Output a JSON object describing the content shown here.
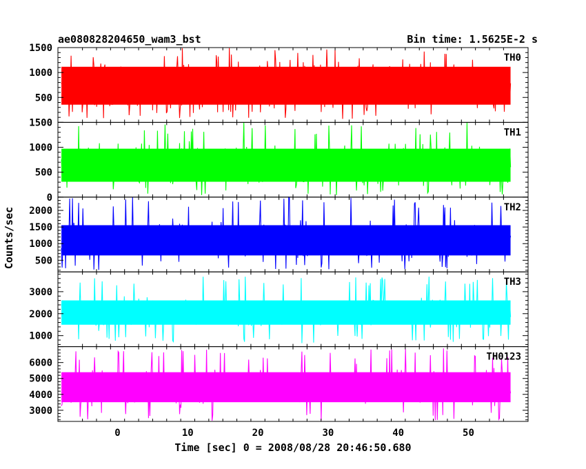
{
  "chart_data": {
    "type": "line",
    "title": "ae080828204650_wam3_bst",
    "subtitle": "Bin time: 1.5625E-2 s",
    "xlabel": "Time [sec] 0 = 2008/08/28 20:46:50.680",
    "ylabel": "Counts/sec",
    "xlim": [
      -8.5,
      58.5
    ],
    "x_ticks": [
      0,
      10,
      20,
      30,
      40,
      50
    ],
    "x_data_range": [
      -8,
      56
    ],
    "panels": [
      {
        "name": "TH0",
        "color": "#ff0000",
        "ylim": [
          0,
          1500
        ],
        "y_ticks": [
          500,
          1000,
          1500
        ],
        "typical_range": [
          150,
          1320
        ],
        "extreme_range": [
          60,
          1500
        ]
      },
      {
        "name": "TH1",
        "color": "#00ff00",
        "ylim": [
          0,
          1500
        ],
        "y_ticks": [
          0,
          500,
          1000,
          1500
        ],
        "typical_range": [
          130,
          1150
        ],
        "extreme_range": [
          40,
          1500
        ]
      },
      {
        "name": "TH2",
        "color": "#0000ff",
        "ylim": [
          150,
          2400
        ],
        "y_ticks": [
          500,
          1000,
          1500,
          2000
        ],
        "typical_range": [
          400,
          1800
        ],
        "extreme_range": [
          200,
          2400
        ]
      },
      {
        "name": "TH3",
        "color": "#00ffff",
        "ylim": [
          500,
          3900
        ],
        "y_ticks": [
          1000,
          2000,
          3000
        ],
        "typical_range": [
          1200,
          2900
        ],
        "extreme_range": [
          650,
          3700
        ]
      },
      {
        "name": "TH0123",
        "color": "#ff00ff",
        "ylim": [
          2300,
          7000
        ],
        "y_ticks": [
          3000,
          4000,
          5000,
          6000
        ],
        "typical_range": [
          3000,
          5900
        ],
        "extreme_range": [
          2300,
          6900
        ]
      }
    ]
  }
}
